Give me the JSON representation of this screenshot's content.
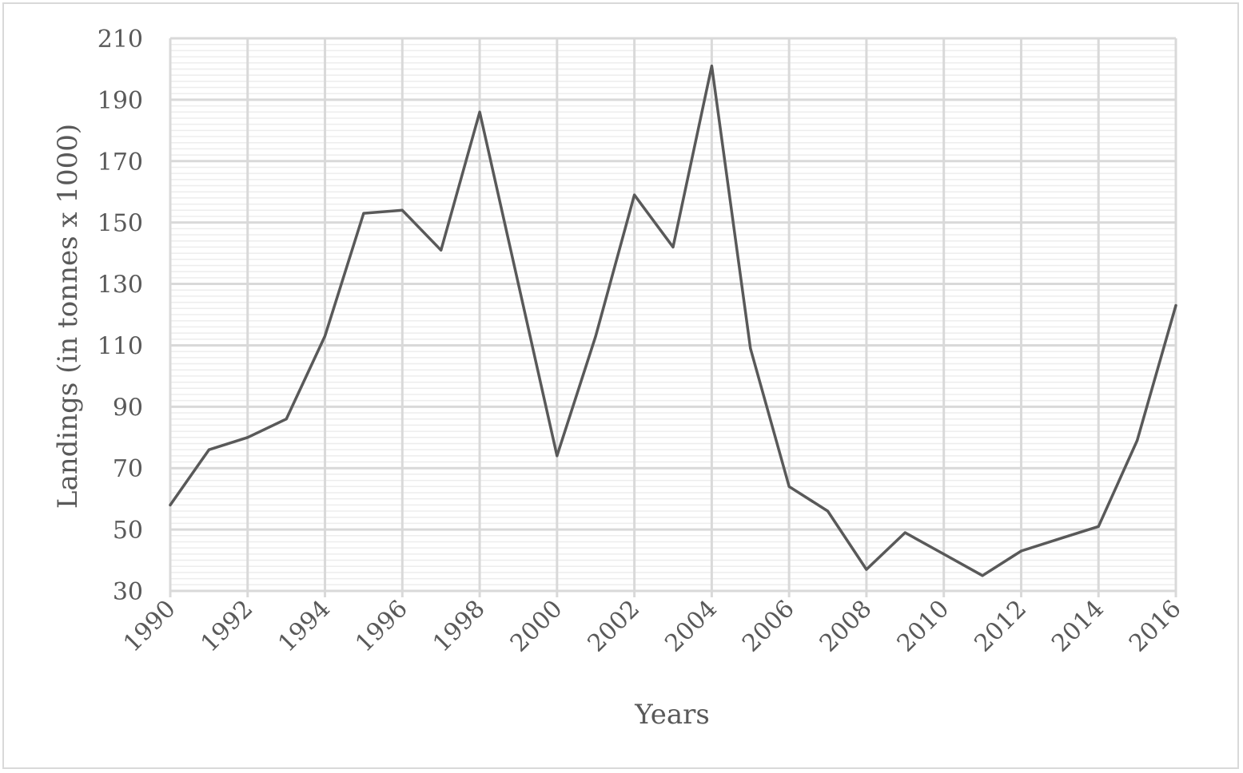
{
  "chart_data": {
    "type": "line",
    "title": "",
    "xlabel": "Years",
    "ylabel": "Landings (in tonnes x 1000)",
    "xlim": [
      1990,
      2016
    ],
    "ylim": [
      30,
      210
    ],
    "x_ticks": [
      1990,
      1992,
      1994,
      1996,
      1998,
      2000,
      2002,
      2004,
      2006,
      2008,
      2010,
      2012,
      2014,
      2016
    ],
    "y_ticks": [
      30,
      50,
      70,
      90,
      110,
      130,
      150,
      170,
      190,
      210
    ],
    "y_minor_step": 2,
    "grid": true,
    "legend": "none",
    "line_color": "#595959",
    "grid_color": "#d9d9d9",
    "minor_grid_color": "#ededed",
    "series": [
      {
        "x": [
          1990,
          1991,
          1992,
          1993,
          1994,
          1995,
          1996,
          1997,
          1998,
          1999,
          2000,
          2001,
          2002,
          2003,
          2004,
          2005,
          2006,
          2007,
          2008,
          2009,
          2010,
          2011,
          2012,
          2013,
          2014,
          2015,
          2016
        ],
        "values": [
          58,
          76,
          80,
          86,
          113,
          153,
          154,
          141,
          186,
          130,
          74,
          113,
          159,
          142,
          201,
          109,
          64,
          56,
          37,
          49,
          42,
          35,
          43,
          47,
          51,
          79,
          123
        ]
      }
    ]
  }
}
